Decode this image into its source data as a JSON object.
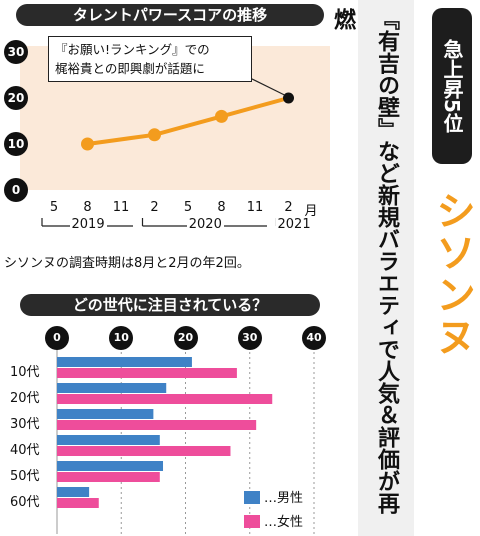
{
  "line_panel": {
    "title": "タレントパワースコアの推移",
    "annotation_lines": [
      "『お願い!ランキング』での",
      "梶裕貴との即興劇が話題に"
    ],
    "note": "シソンヌの調査時期は8月と2月の年2回。",
    "month_unit": "月",
    "years": [
      "2019",
      "2020",
      "2021"
    ]
  },
  "bar_panel": {
    "title": "どの世代に注目されている？",
    "legend_male": "…男性",
    "legend_female": "…女性"
  },
  "side": {
    "rank_label": "急上昇5位",
    "name": "シソンヌ",
    "headline": "『有吉の壁』など新規バラエティで人気＆評価が再燃"
  },
  "colors": {
    "line": "#f39c1e",
    "male": "#3f82c6",
    "female": "#ee4d9b",
    "bg_band": "#fbe9d9"
  },
  "chart_data": [
    {
      "type": "line",
      "title": "タレントパワースコアの推移",
      "categories": [
        "5",
        "8",
        "11",
        "2",
        "5",
        "8",
        "11",
        "2"
      ],
      "category_years": [
        "2019",
        "2019",
        "2019",
        "2020",
        "2020",
        "2020",
        "2020",
        "2021"
      ],
      "series": [
        {
          "values": [
            null,
            10,
            null,
            12,
            null,
            16,
            null,
            20
          ]
        }
      ],
      "yticks": [
        "0",
        "10",
        "20",
        "30"
      ],
      "ylim": [
        0,
        30
      ],
      "grid": false
    },
    {
      "type": "bar",
      "orientation": "horizontal",
      "title": "どの世代に注目されている？",
      "categories": [
        "10代",
        "20代",
        "30代",
        "40代",
        "50代",
        "60代"
      ],
      "series": [
        {
          "name": "男性",
          "values": [
            21,
            17,
            15,
            16,
            16.5,
            5
          ]
        },
        {
          "name": "女性",
          "values": [
            28,
            33.5,
            31,
            27,
            16,
            6.5
          ]
        }
      ],
      "xticks": [
        "0",
        "10",
        "20",
        "30",
        "40"
      ],
      "xlim": [
        0,
        40
      ],
      "legend": "bottom-right",
      "grid": "vertical dotted"
    }
  ]
}
